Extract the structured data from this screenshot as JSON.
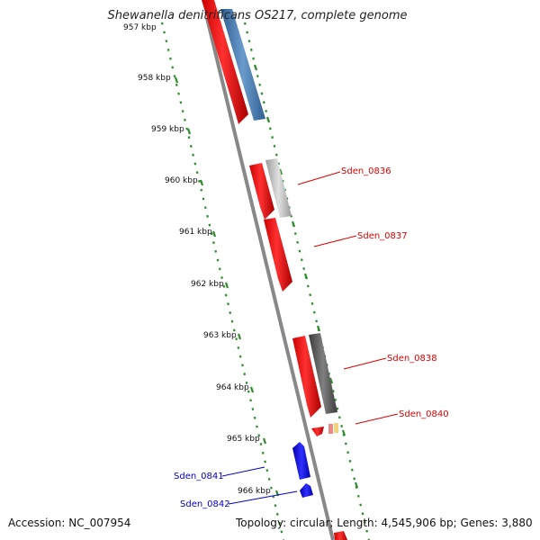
{
  "title": "Shewanella denitrificans OS217, complete genome",
  "accession_text": "Accession: NC_007954",
  "stats_text": "Topology: circular; Length: 4,545,906 bp; Genes: 3,880",
  "ticks": [
    {
      "label": "957 kbp"
    },
    {
      "label": "958 kbp"
    },
    {
      "label": "959 kbp"
    },
    {
      "label": "960 kbp"
    },
    {
      "label": "961 kbp"
    },
    {
      "label": "962 kbp"
    },
    {
      "label": "963 kbp"
    },
    {
      "label": "964 kbp"
    },
    {
      "label": "965 kbp"
    },
    {
      "label": "966 kbp"
    }
  ],
  "genes": [
    {
      "label": "Sden_0836",
      "color": "#dd0000"
    },
    {
      "label": "Sden_0837",
      "color": "#dd0000"
    },
    {
      "label": "Sden_0838",
      "color": "#dd0000"
    },
    {
      "label": "Sden_0840",
      "color": "#dd0000"
    },
    {
      "label": "Sden_0841",
      "color": "#0000cc"
    },
    {
      "label": "Sden_0842",
      "color": "#0000cc"
    }
  ],
  "colors": {
    "forward_cds": "#ff0000",
    "reverse_cds": "#0000ff",
    "blast_hit": "#4a7fb5",
    "gray_hit_light": "#c8c8c8",
    "gray_hit_dark": "#666666",
    "backbone": "#8a8a8a",
    "tick_marks": "#2e8b2e"
  }
}
